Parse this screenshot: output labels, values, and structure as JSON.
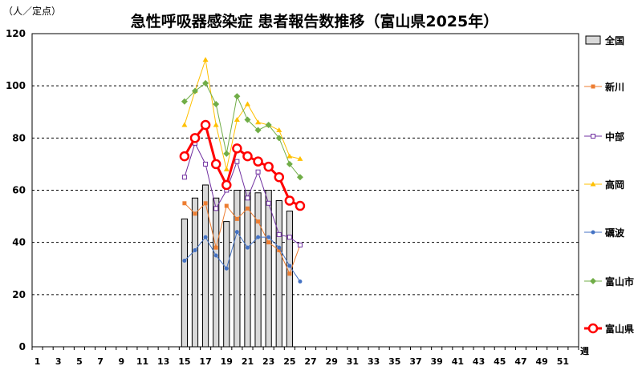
{
  "chart_data": {
    "type": "line",
    "title": "急性呼吸器感染症 患者報告数推移（富山県2025年）",
    "ylabel": "（人／定点）",
    "xlabel": "週",
    "ylim": [
      0,
      120
    ],
    "yticks": [
      0,
      20,
      40,
      60,
      80,
      100,
      120
    ],
    "xlim": [
      1,
      52
    ],
    "xticks": [
      1,
      3,
      5,
      7,
      9,
      11,
      13,
      15,
      17,
      19,
      21,
      23,
      25,
      27,
      29,
      31,
      33,
      35,
      37,
      39,
      41,
      43,
      45,
      47,
      49,
      51
    ],
    "grid": "dashed horizontal",
    "legend_position": "right",
    "bar_series": {
      "name": "全国",
      "color": "#d9d9d9",
      "x": [
        15,
        16,
        17,
        18,
        19,
        20,
        21,
        22,
        23,
        24,
        25
      ],
      "values": [
        49,
        57,
        62,
        57,
        48,
        60,
        60,
        59,
        60,
        56,
        52
      ]
    },
    "series": [
      {
        "name": "新川",
        "color": "#ed7d31",
        "marker": "square-filled",
        "x": [
          15,
          16,
          17,
          18,
          19,
          20,
          21,
          22,
          23,
          24,
          25,
          26
        ],
        "values": [
          55,
          51,
          55,
          38,
          54,
          49,
          53,
          48,
          40,
          37,
          28,
          39
        ]
      },
      {
        "name": "中部",
        "color": "#7030a0",
        "marker": "square-open",
        "x": [
          15,
          16,
          17,
          18,
          19,
          20,
          21,
          22,
          23,
          24,
          25,
          26
        ],
        "values": [
          65,
          78,
          70,
          53,
          60,
          71,
          57,
          67,
          55,
          43,
          42,
          39
        ]
      },
      {
        "name": "高岡",
        "color": "#ffc000",
        "marker": "triangle",
        "x": [
          15,
          16,
          17,
          18,
          19,
          20,
          21,
          22,
          23,
          24,
          25,
          26
        ],
        "values": [
          85,
          98,
          110,
          85,
          68,
          87,
          93,
          86,
          85,
          83,
          73,
          72
        ]
      },
      {
        "name": "礪波",
        "color": "#4472c4",
        "marker": "circle-filled",
        "x": [
          15,
          16,
          17,
          18,
          19,
          20,
          21,
          22,
          23,
          24,
          25,
          26
        ],
        "values": [
          33,
          37,
          42,
          35,
          30,
          44,
          38,
          42,
          42,
          38,
          31,
          25
        ]
      },
      {
        "name": "富山市",
        "color": "#70ad47",
        "marker": "diamond",
        "x": [
          15,
          16,
          17,
          18,
          19,
          20,
          21,
          22,
          23,
          24,
          25,
          26
        ],
        "values": [
          94,
          98,
          101,
          93,
          74,
          96,
          87,
          83,
          85,
          80,
          70,
          65
        ]
      },
      {
        "name": "富山県",
        "color": "#ff0000",
        "marker": "circle-open-large",
        "x": [
          15,
          16,
          17,
          18,
          19,
          20,
          21,
          22,
          23,
          24,
          25,
          26
        ],
        "values": [
          73,
          80,
          85,
          70,
          62,
          76,
          73,
          71,
          69,
          65,
          56,
          54
        ]
      }
    ]
  }
}
